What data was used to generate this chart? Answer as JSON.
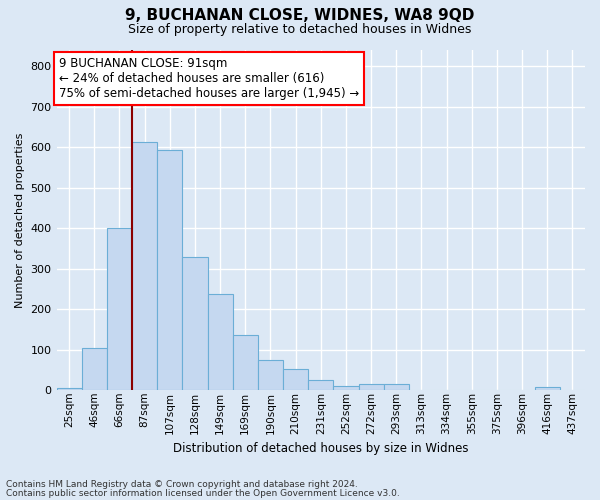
{
  "title1": "9, BUCHANAN CLOSE, WIDNES, WA8 9QD",
  "title2": "Size of property relative to detached houses in Widnes",
  "xlabel": "Distribution of detached houses by size in Widnes",
  "ylabel": "Number of detached properties",
  "categories": [
    "25sqm",
    "46sqm",
    "66sqm",
    "87sqm",
    "107sqm",
    "128sqm",
    "149sqm",
    "169sqm",
    "190sqm",
    "210sqm",
    "231sqm",
    "252sqm",
    "272sqm",
    "293sqm",
    "313sqm",
    "334sqm",
    "355sqm",
    "375sqm",
    "396sqm",
    "416sqm",
    "437sqm"
  ],
  "values": [
    6,
    105,
    400,
    612,
    592,
    328,
    237,
    136,
    75,
    53,
    25,
    10,
    15,
    15,
    1,
    0,
    0,
    0,
    0,
    7,
    0
  ],
  "bar_color": "#c5d8f0",
  "bar_edge_color": "#6baed6",
  "annotation_line0": "9 BUCHANAN CLOSE: 91sqm",
  "annotation_line1": "← 24% of detached houses are smaller (616)",
  "annotation_line2": "75% of semi-detached houses are larger (1,945) →",
  "vline_x_index": 3,
  "ylim": [
    0,
    840
  ],
  "yticks": [
    0,
    100,
    200,
    300,
    400,
    500,
    600,
    700,
    800
  ],
  "footnote1": "Contains HM Land Registry data © Crown copyright and database right 2024.",
  "footnote2": "Contains public sector information licensed under the Open Government Licence v3.0.",
  "background_color": "#dce8f5",
  "grid_color": "#ffffff",
  "bar_width": 1.0
}
